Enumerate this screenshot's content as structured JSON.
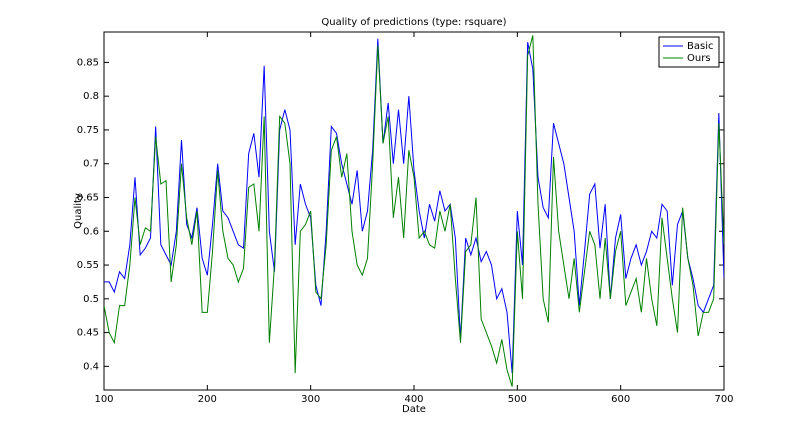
{
  "chart_data": {
    "type": "line",
    "title": "Quality of predictions (type: rsquare)",
    "x_label": "Date",
    "y_label": "Quality",
    "x": [
      100,
      105,
      110,
      115,
      120,
      125,
      130,
      135,
      140,
      145,
      150,
      155,
      160,
      165,
      170,
      175,
      180,
      185,
      190,
      195,
      200,
      205,
      210,
      215,
      220,
      225,
      230,
      235,
      240,
      245,
      250,
      255,
      260,
      265,
      270,
      275,
      280,
      285,
      290,
      295,
      300,
      305,
      310,
      315,
      320,
      325,
      330,
      335,
      340,
      345,
      350,
      355,
      360,
      365,
      370,
      375,
      380,
      385,
      390,
      395,
      400,
      405,
      410,
      415,
      420,
      425,
      430,
      435,
      440,
      445,
      450,
      455,
      460,
      465,
      470,
      475,
      480,
      485,
      490,
      495,
      500,
      505,
      510,
      515,
      520,
      525,
      530,
      535,
      540,
      545,
      550,
      555,
      560,
      565,
      570,
      575,
      580,
      585,
      590,
      595,
      600,
      605,
      610,
      615,
      620,
      625,
      630,
      635,
      640,
      645,
      650,
      655,
      660,
      665,
      670,
      675,
      680,
      685,
      690,
      695,
      700
    ],
    "series": [
      {
        "name": "Basic",
        "color": "#0000ff",
        "values": [
          0.525,
          0.525,
          0.51,
          0.54,
          0.53,
          0.58,
          0.68,
          0.565,
          0.575,
          0.59,
          0.755,
          0.58,
          0.565,
          0.55,
          0.6,
          0.735,
          0.61,
          0.59,
          0.635,
          0.56,
          0.535,
          0.61,
          0.7,
          0.63,
          0.62,
          0.6,
          0.58,
          0.575,
          0.715,
          0.745,
          0.68,
          0.845,
          0.6,
          0.54,
          0.75,
          0.78,
          0.75,
          0.58,
          0.67,
          0.64,
          0.62,
          0.52,
          0.49,
          0.6,
          0.755,
          0.745,
          0.7,
          0.67,
          0.64,
          0.69,
          0.6,
          0.63,
          0.72,
          0.885,
          0.73,
          0.79,
          0.7,
          0.78,
          0.7,
          0.8,
          0.69,
          0.63,
          0.59,
          0.64,
          0.615,
          0.66,
          0.63,
          0.64,
          0.59,
          0.44,
          0.59,
          0.565,
          0.59,
          0.555,
          0.57,
          0.55,
          0.5,
          0.515,
          0.48,
          0.39,
          0.63,
          0.55,
          0.88,
          0.84,
          0.68,
          0.635,
          0.62,
          0.76,
          0.73,
          0.7,
          0.65,
          0.6,
          0.49,
          0.57,
          0.655,
          0.67,
          0.575,
          0.64,
          0.5,
          0.59,
          0.625,
          0.53,
          0.56,
          0.58,
          0.55,
          0.57,
          0.6,
          0.59,
          0.64,
          0.63,
          0.52,
          0.61,
          0.63,
          0.56,
          0.53,
          0.49,
          0.48,
          0.5,
          0.52,
          0.775,
          0.53
        ]
      },
      {
        "name": "Ours",
        "color": "#008000",
        "values": [
          0.49,
          0.45,
          0.435,
          0.49,
          0.49,
          0.55,
          0.65,
          0.58,
          0.605,
          0.6,
          0.74,
          0.67,
          0.675,
          0.525,
          0.58,
          0.7,
          0.62,
          0.58,
          0.63,
          0.48,
          0.48,
          0.57,
          0.69,
          0.6,
          0.56,
          0.55,
          0.525,
          0.545,
          0.665,
          0.67,
          0.6,
          0.77,
          0.435,
          0.55,
          0.77,
          0.76,
          0.7,
          0.39,
          0.6,
          0.61,
          0.63,
          0.51,
          0.5,
          0.58,
          0.72,
          0.74,
          0.68,
          0.715,
          0.6,
          0.55,
          0.535,
          0.56,
          0.7,
          0.875,
          0.73,
          0.77,
          0.62,
          0.68,
          0.59,
          0.72,
          0.68,
          0.59,
          0.6,
          0.58,
          0.575,
          0.63,
          0.6,
          0.64,
          0.53,
          0.435,
          0.57,
          0.58,
          0.65,
          0.47,
          0.45,
          0.43,
          0.405,
          0.44,
          0.395,
          0.37,
          0.6,
          0.5,
          0.86,
          0.89,
          0.64,
          0.5,
          0.465,
          0.71,
          0.6,
          0.55,
          0.5,
          0.56,
          0.48,
          0.54,
          0.6,
          0.58,
          0.5,
          0.59,
          0.5,
          0.57,
          0.6,
          0.49,
          0.51,
          0.53,
          0.48,
          0.56,
          0.5,
          0.46,
          0.62,
          0.56,
          0.5,
          0.45,
          0.635,
          0.56,
          0.52,
          0.445,
          0.48,
          0.48,
          0.5,
          0.76,
          0.58
        ]
      }
    ],
    "xlim": [
      100,
      700
    ],
    "ylim": [
      0.365,
      0.895
    ],
    "xticks": [
      100,
      200,
      300,
      400,
      500,
      600,
      700
    ],
    "yticks": [
      0.4,
      0.45,
      0.5,
      0.55,
      0.6,
      0.65,
      0.7,
      0.75,
      0.8,
      0.85
    ],
    "legend": "upper right"
  }
}
